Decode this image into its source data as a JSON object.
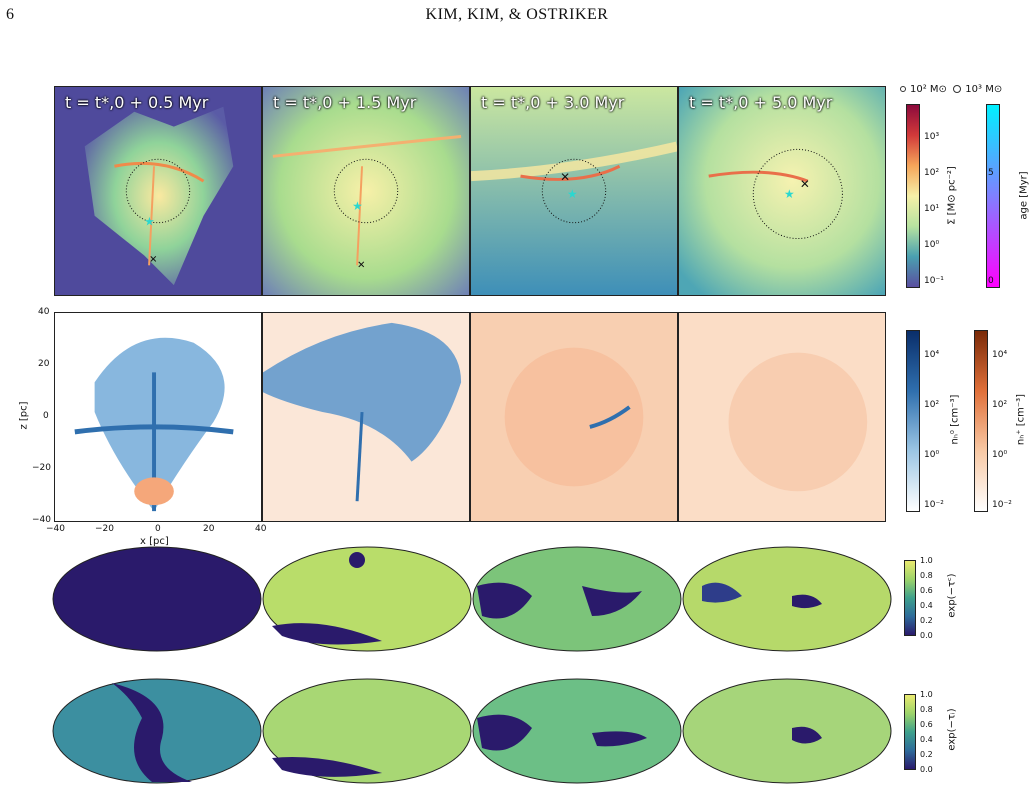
{
  "header": {
    "page_number": "6",
    "running_head": "KIM, KIM, & OSTRIKER"
  },
  "row1": {
    "titles": [
      "t = t*,0 + 0.5 Myr",
      "t = t*,0 + 1.5 Myr",
      "t = t*,0 + 3.0 Myr",
      "t = t*,0 + 5.0 Myr"
    ]
  },
  "legend": {
    "small": "10² M⊙",
    "large": "10³ M⊙"
  },
  "colorbars": {
    "sigma": {
      "label": "Σ [M⊙ pc⁻²]",
      "ticks": [
        "10³",
        "10²",
        "10¹",
        "10⁰",
        "10⁻¹"
      ]
    },
    "age": {
      "label": "age [Myr]",
      "ticks": [
        "5",
        "0"
      ]
    },
    "nh0": {
      "label": "nₕ⁰ [cm⁻³]",
      "ticks": [
        "10⁴",
        "10²",
        "10⁰",
        "10⁻²"
      ]
    },
    "nhp": {
      "label": "nₕ⁺ [cm⁻³]",
      "ticks": [
        "10⁴",
        "10²",
        "10⁰",
        "10⁻²"
      ]
    },
    "esc1": {
      "label": "exp(−τᶜ)",
      "ticks": [
        "1.0",
        "0.8",
        "0.6",
        "0.4",
        "0.2",
        "0.0"
      ]
    },
    "esc2": {
      "label": "exp(−τᵢ)",
      "ticks": [
        "1.0",
        "0.8",
        "0.6",
        "0.4",
        "0.2",
        "0.0"
      ]
    }
  },
  "axes": {
    "xlabel": "x [pc]",
    "ylabel": "z [pc]",
    "xticks": [
      "−40",
      "−20",
      "0",
      "20",
      "40"
    ],
    "yticks": [
      "40",
      "20",
      "0",
      "−20",
      "−40"
    ]
  },
  "colors": {
    "sigma_low": "#4b3f8f",
    "sigma_high": "#f4e8a0",
    "neutral": "#2f6fae",
    "ion": "#f5a77a",
    "esc_low": "#2a1a6b",
    "esc_high": "#dfe86a"
  }
}
